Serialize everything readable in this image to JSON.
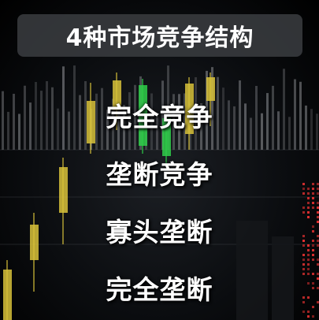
{
  "title": "4种市场竞争结构",
  "items": [
    {
      "label": "完全竞争"
    },
    {
      "label": "垄断竞争"
    },
    {
      "label": "寡头垄断"
    },
    {
      "label": "完全垄断"
    }
  ],
  "colors": {
    "background": "#0b0d10",
    "title_box": "#3a3c40",
    "text": "#ffffff",
    "candle_yellow": "#d8c23a",
    "candle_green": "#2fcf4a",
    "volume_bars": "#8a8c90",
    "dot_matrix": "#e03030"
  },
  "background_decoration": "candlestick-chart"
}
